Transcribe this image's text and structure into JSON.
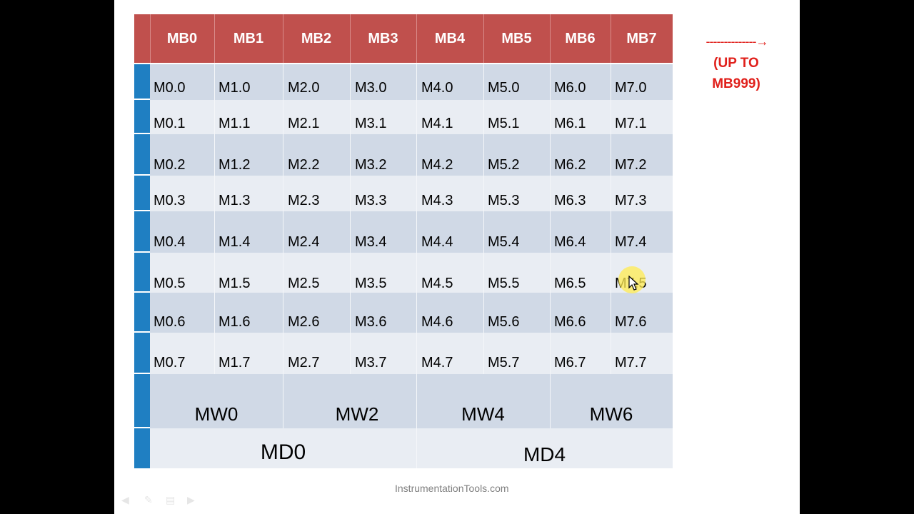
{
  "header": {
    "columns": [
      "MB0",
      "MB1",
      "MB2",
      "MB3",
      "MB4",
      "MB5",
      "MB6",
      "MB7"
    ]
  },
  "bits": [
    [
      "M0.0",
      "M1.0",
      "M2.0",
      "M3.0",
      "M4.0",
      "M5.0",
      "M6.0",
      "M7.0"
    ],
    [
      "M0.1",
      "M1.1",
      "M2.1",
      "M3.1",
      "M4.1",
      "M5.1",
      "M6.1",
      "M7.1"
    ],
    [
      "M0.2",
      "M1.2",
      "M2.2",
      "M3.2",
      "M4.2",
      "M5.2",
      "M6.2",
      "M7.2"
    ],
    [
      "M0.3",
      "M1.3",
      "M2.3",
      "M3.3",
      "M4.3",
      "M5.3",
      "M6.3",
      "M7.3"
    ],
    [
      "M0.4",
      "M1.4",
      "M2.4",
      "M3.4",
      "M4.4",
      "M5.4",
      "M6.4",
      "M7.4"
    ],
    [
      "M0.5",
      "M1.5",
      "M2.5",
      "M3.5",
      "M4.5",
      "M5.5",
      "M6.5",
      "M7.5"
    ],
    [
      "M0.6",
      "M1.6",
      "M2.6",
      "M3.6",
      "M4.6",
      "M5.6",
      "M6.6",
      "M7.6"
    ],
    [
      "M0.7",
      "M1.7",
      "M2.7",
      "M3.7",
      "M4.7",
      "M5.7",
      "M6.7",
      "M7.7"
    ]
  ],
  "words": [
    "MW0",
    "MW2",
    "MW4",
    "MW6"
  ],
  "dwords": [
    "MD0",
    "MD4"
  ],
  "note": {
    "arrow": "--------------→",
    "line1": "(UP TO",
    "line2": "MB999)"
  },
  "footer": "InstrumentationTools.com",
  "colors": {
    "header": "#c0504d",
    "stripe": "#1f7fc2",
    "row_dark": "#d0d9e6",
    "row_light": "#e9edf3",
    "note": "#e0201b"
  }
}
